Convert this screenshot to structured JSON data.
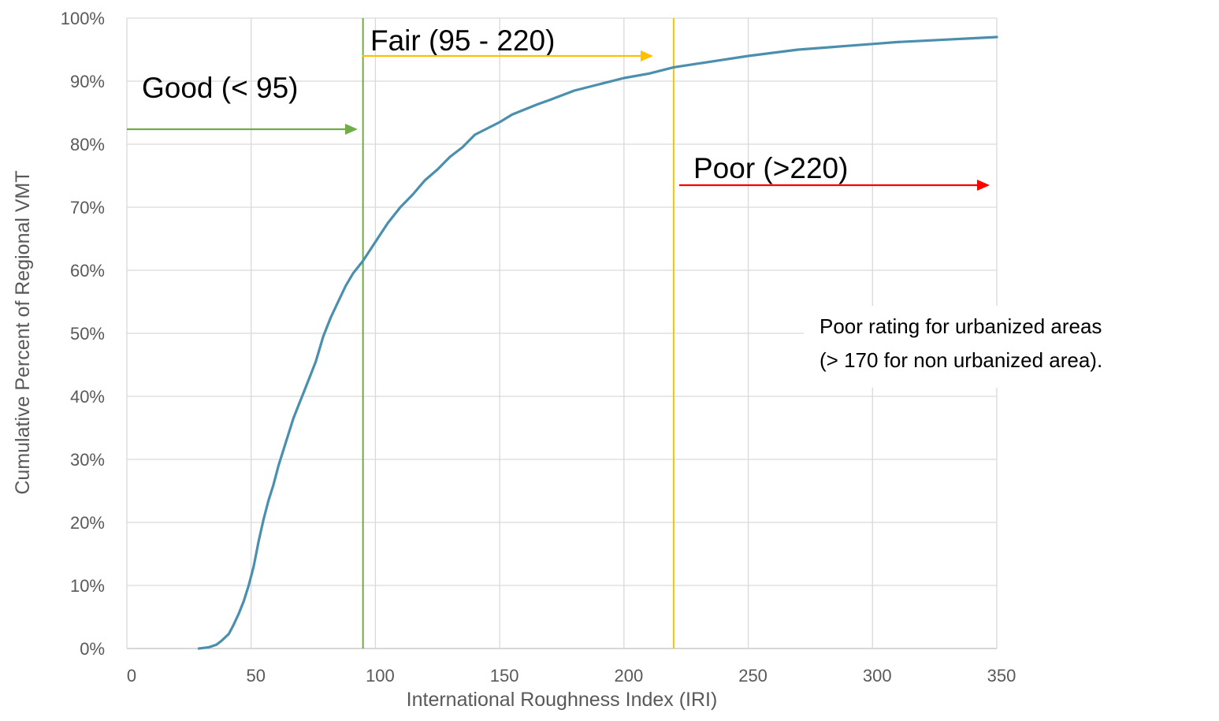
{
  "chart_data": {
    "type": "line",
    "xlabel": "International Roughness Index (IRI)",
    "ylabel": "Cumulative Percent of Regional VMT",
    "xlim": [
      0,
      350
    ],
    "ylim": [
      0,
      100
    ],
    "x_ticks": [
      "0",
      "50",
      "100",
      "150",
      "200",
      "250",
      "300",
      "350"
    ],
    "y_ticks": [
      "0%",
      "10%",
      "20%",
      "30%",
      "40%",
      "50%",
      "60%",
      "70%",
      "80%",
      "90%",
      "100%"
    ],
    "grid": true,
    "series": [
      {
        "color": "#4a8fae",
        "x": [
          29,
          33,
          36,
          38,
          41,
          43,
          45,
          47,
          49,
          51,
          53,
          55,
          57,
          59,
          61,
          63,
          65,
          67,
          69,
          71,
          73,
          76,
          79,
          82,
          85,
          88,
          91,
          95,
          100,
          105,
          110,
          115,
          120,
          125,
          130,
          135,
          140,
          145,
          150,
          155,
          160,
          165,
          170,
          180,
          190,
          200,
          210,
          220,
          230,
          240,
          250,
          260,
          270,
          280,
          290,
          300,
          310,
          320,
          330,
          340,
          350
        ],
        "y": [
          0,
          0.2,
          0.6,
          1.2,
          2.3,
          3.8,
          5.5,
          7.5,
          10,
          13,
          17,
          20.5,
          23.5,
          26,
          29,
          31.5,
          34,
          36.5,
          38.5,
          40.5,
          42.5,
          45.5,
          49.5,
          52.5,
          55,
          57.5,
          59.5,
          61.5,
          64.5,
          67.5,
          70,
          72,
          74.3,
          76,
          78,
          79.5,
          81.5,
          82.5,
          83.5,
          84.7,
          85.5,
          86.3,
          87,
          88.5,
          89.5,
          90.5,
          91.2,
          92.2,
          92.8,
          93.4,
          94,
          94.5,
          95,
          95.3,
          95.6,
          95.9,
          96.2,
          96.4,
          96.6,
          96.8,
          97
        ]
      }
    ],
    "thresholds": [
      {
        "x": 95,
        "color": "#70ad47"
      },
      {
        "x": 220,
        "color": "#ffc000"
      }
    ],
    "annotations": {
      "good": {
        "text": "Good (< 95)",
        "color": "#70ad47"
      },
      "fair": {
        "text": "Fair (95 - 220)",
        "color": "#ffc000"
      },
      "poor": {
        "text": "Poor (>220)",
        "color": "#ff0000"
      },
      "note_line1": "Poor rating for urbanized areas",
      "note_line2": "(> 170 for non urbanized area)."
    }
  }
}
